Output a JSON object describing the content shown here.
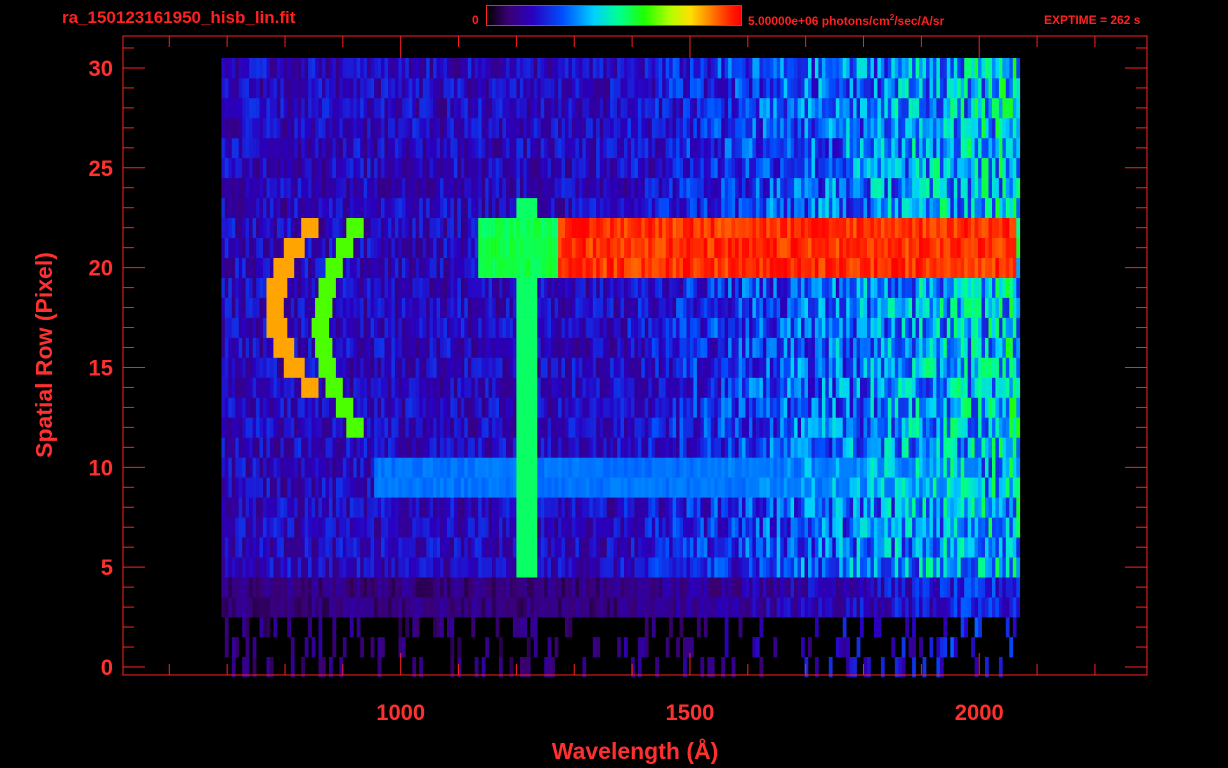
{
  "header": {
    "file_title": "ra_150123161950_hisb_lin.fit",
    "colorbar_min": "0",
    "colorbar_max_prefix": "5.00000e+06 photons/cm",
    "colorbar_max_sup": "2",
    "colorbar_max_suffix": "/sec/A/sr",
    "exptime": "EXPTIME = 262 s"
  },
  "colors": {
    "text": "#ff3030",
    "axis": "#ff2020",
    "background": "#000000"
  },
  "chart_data": {
    "type": "heatmap",
    "title": "ra_150123161950_hisb_lin.fit",
    "xlabel": "Wavelength (Å)",
    "ylabel": "Spatial Row (Pixel)",
    "xlim": [
      520,
      2290
    ],
    "ylim": [
      -0.4,
      31.6
    ],
    "x_ticks": [
      1000,
      1500,
      2000
    ],
    "y_ticks": [
      0,
      5,
      10,
      15,
      20,
      25,
      30
    ],
    "x_tick_labels": [
      "1000",
      "1500",
      "2000"
    ],
    "y_tick_labels": [
      "0",
      "5",
      "10",
      "15",
      "20",
      "25",
      "30"
    ],
    "colorbar": {
      "min": 0,
      "max": 5000000,
      "units": "photons/cm²/sec/A/sr"
    },
    "exptime_s": 262,
    "rows": 31,
    "wavelength_coverage": [
      690,
      2070
    ],
    "features": [
      {
        "kind": "emission_line",
        "wavelength": 1216,
        "rows": [
          5,
          23
        ],
        "intensity": 0.55
      },
      {
        "kind": "band",
        "rows": [
          20,
          22
        ],
        "wavelength": [
          1270,
          2060
        ],
        "intensity": 1.0
      },
      {
        "kind": "band",
        "rows": [
          20,
          22
        ],
        "wavelength": [
          1130,
          1270
        ],
        "intensity": 0.6
      },
      {
        "kind": "band",
        "rows": [
          9,
          10
        ],
        "wavelength": [
          950,
          2000
        ],
        "intensity": 0.35
      },
      {
        "kind": "arc",
        "rows": [
          14,
          22
        ],
        "wavelength_center": 780,
        "intensity": 0.85
      },
      {
        "kind": "arc",
        "rows": [
          12,
          22
        ],
        "wavelength_center": 860,
        "intensity": 0.65
      }
    ]
  }
}
